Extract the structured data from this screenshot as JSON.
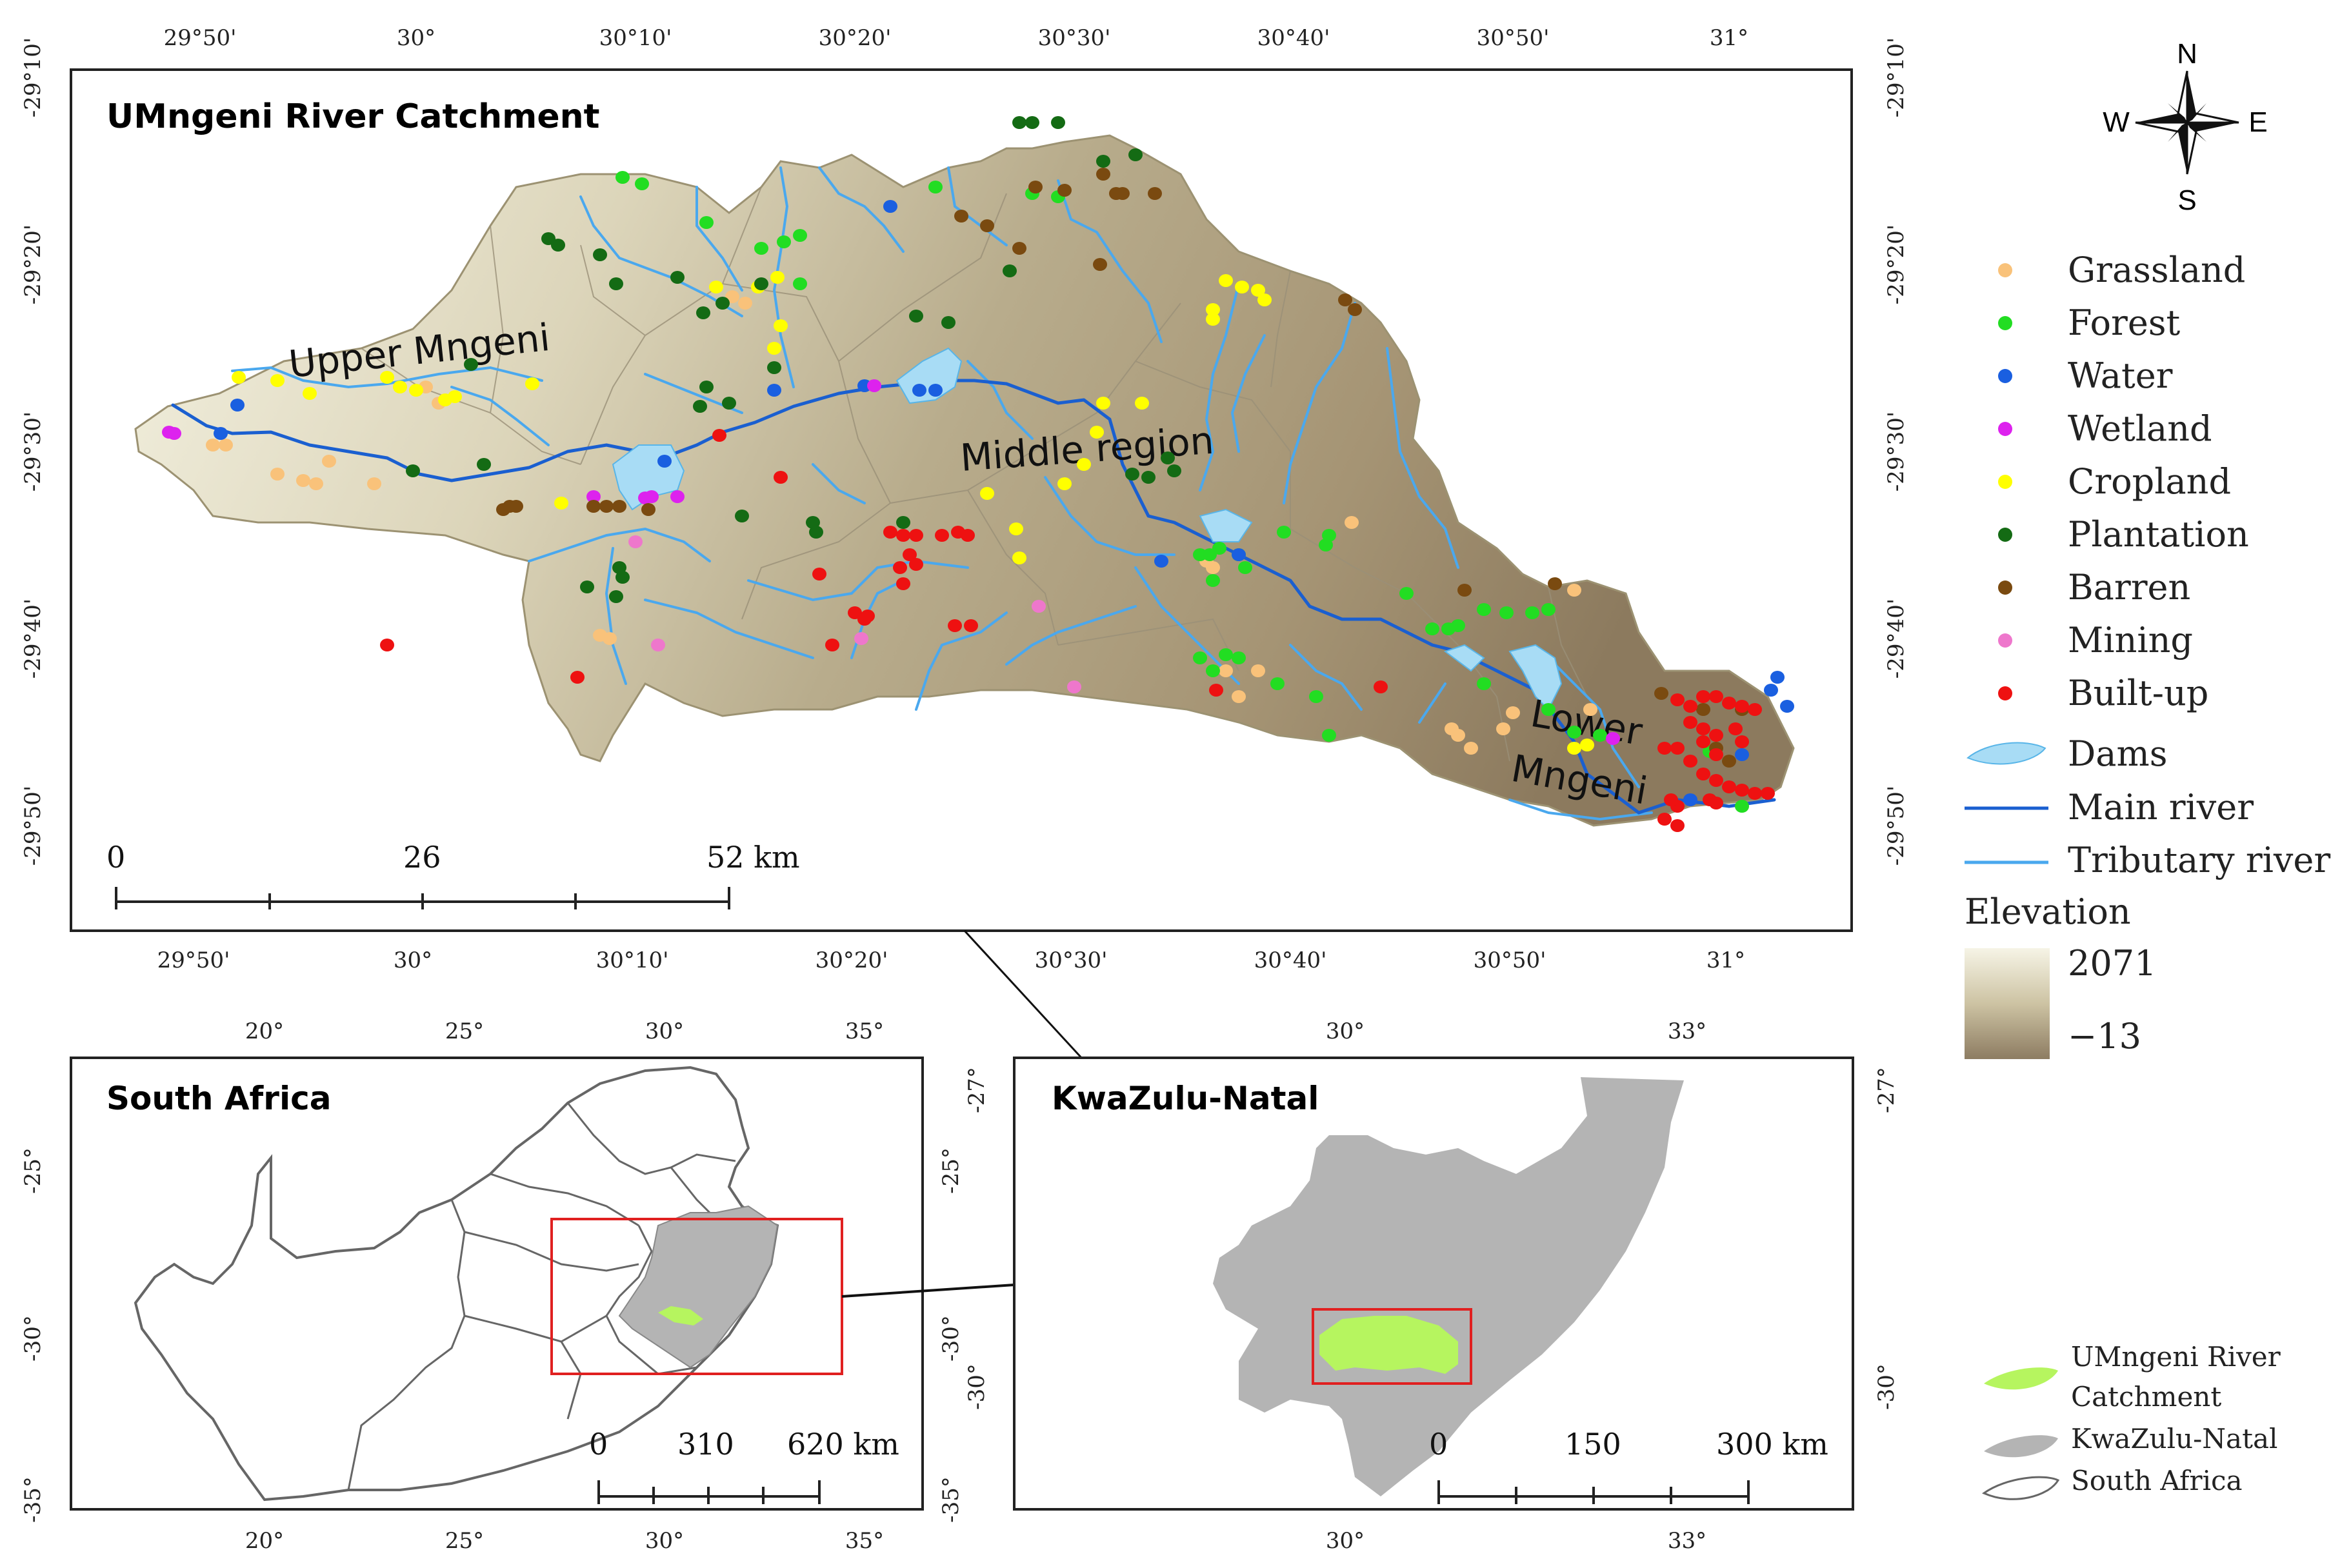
{
  "main_map": {
    "title": "UMngeni River Catchment",
    "top_ticks": [
      "29°50'",
      "30°",
      "30°10'",
      "30°20'",
      "30°30'",
      "30°40'",
      "30°50'",
      "31°"
    ],
    "bottom_ticks": [
      "29°50'",
      "30°",
      "30°10'",
      "30°20'",
      "30°30'",
      "30°40'",
      "30°50'",
      "31°"
    ],
    "left_ticks": [
      "-29°10'",
      "-29°20'",
      "-29°30'",
      "-29°40'",
      "-29°50'"
    ],
    "right_ticks": [
      "-29°10'",
      "-29°20'",
      "-29°30'",
      "-29°40'",
      "-29°50'"
    ],
    "regions": {
      "upper": "Upper Mngeni",
      "middle": "Middle region",
      "lower_1": "Lower",
      "lower_2": "Mngeni"
    },
    "scale_labels": [
      "0",
      "26",
      "52 km"
    ]
  },
  "compass": {
    "n": "N",
    "s": "S",
    "e": "E",
    "w": "W"
  },
  "legend": {
    "items": [
      {
        "label": "Grassland",
        "color": "#f9c27a"
      },
      {
        "label": "Forest",
        "color": "#22dd22"
      },
      {
        "label": "Water",
        "color": "#1a5fe0"
      },
      {
        "label": "Wetland",
        "color": "#dd22ee"
      },
      {
        "label": "Cropland",
        "color": "#ffff00"
      },
      {
        "label": "Plantation",
        "color": "#146b14"
      },
      {
        "label": "Barren",
        "color": "#7a4a10"
      },
      {
        "label": "Mining",
        "color": "#ee77cc"
      },
      {
        "label": "Built-up",
        "color": "#ee1111"
      }
    ],
    "dams": "Dams",
    "main_river": "Main river",
    "tributary_river": "Tributary river",
    "elevation_title": "Elevation",
    "elevation_max": "2071",
    "elevation_min": "−13",
    "dams_color": "#a8dcf5",
    "main_river_color": "#1a5fd0",
    "tributary_color": "#4aa8ee"
  },
  "inset_sa": {
    "title": "South Africa",
    "top_ticks": [
      "20°",
      "25°",
      "30°",
      "35°"
    ],
    "bottom_ticks": [
      "20°",
      "25°",
      "30°",
      "35°"
    ],
    "left_ticks": [
      "-25°",
      "-30°",
      "-35°"
    ],
    "right_ticks": [
      "-25°",
      "-30°",
      "-35°"
    ],
    "scale_labels": [
      "0",
      "310",
      "620 km"
    ]
  },
  "inset_kzn": {
    "title": "KwaZulu-Natal",
    "top_ticks": [
      "30°",
      "33°"
    ],
    "bottom_ticks": [
      "30°",
      "33°"
    ],
    "left_ticks": [
      "-27°",
      "-30°"
    ],
    "right_ticks": [
      "-27°",
      "-30°"
    ],
    "scale_labels": [
      "0",
      "150",
      "300 km"
    ]
  },
  "bottom_legend": {
    "catchment_1": "UMngeni River",
    "catchment_2": "Catchment",
    "kzn": "KwaZulu-Natal",
    "sa": "South Africa",
    "catchment_color": "#b6f55f",
    "kzn_color": "#b4b4b4"
  }
}
